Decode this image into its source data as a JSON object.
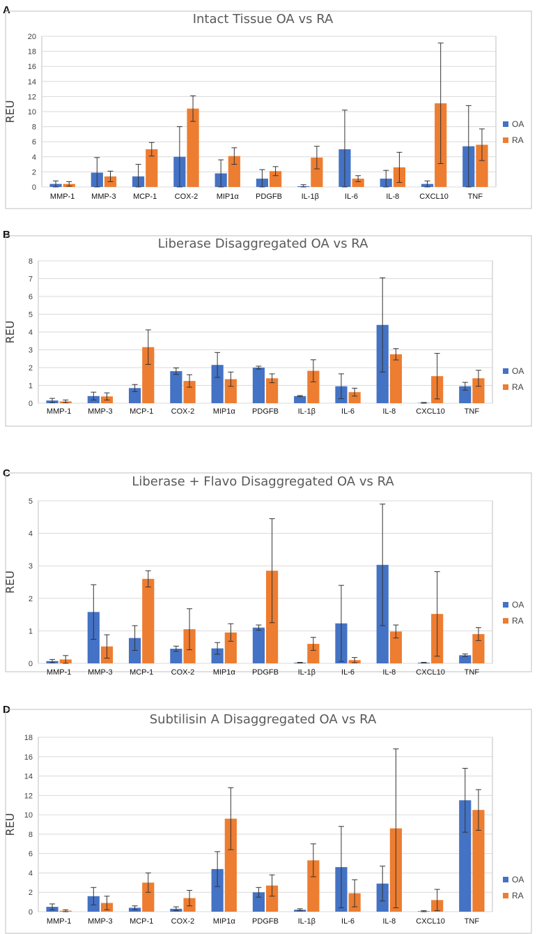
{
  "colors": {
    "OA": "#4472C4",
    "RA": "#ED7D31",
    "grid": "#D9D9D9",
    "errorbar": "#333333"
  },
  "chart_data": [
    {
      "panel": "A",
      "type": "bar",
      "title": "Intact Tissue OA vs RA",
      "xlabel": "",
      "ylabel": "REU",
      "ylim": [
        0,
        20
      ],
      "yticks": [
        0,
        2,
        4,
        6,
        8,
        10,
        12,
        14,
        16,
        18,
        20
      ],
      "legend_position": "right",
      "categories": [
        "MMP-1",
        "MMP-3",
        "MCP-1",
        "COX-2",
        "MIP1α",
        "PDGFB",
        "IL-1β",
        "IL-6",
        "IL-8",
        "CXCL10",
        "TNF"
      ],
      "series": [
        {
          "name": "OA",
          "values": [
            0.4,
            1.9,
            1.4,
            4.0,
            1.8,
            1.1,
            0.1,
            5.0,
            1.1,
            0.4,
            5.4
          ],
          "errors": [
            0.4,
            2.0,
            1.6,
            4.0,
            1.8,
            1.2,
            0.2,
            5.2,
            1.1,
            0.4,
            5.4
          ]
        },
        {
          "name": "RA",
          "values": [
            0.4,
            1.4,
            5.0,
            10.4,
            4.1,
            2.1,
            3.9,
            1.1,
            2.6,
            11.1,
            5.6
          ],
          "errors": [
            0.3,
            0.7,
            0.9,
            1.7,
            1.1,
            0.6,
            1.5,
            0.4,
            2.0,
            8.0,
            2.1
          ]
        }
      ]
    },
    {
      "panel": "B",
      "type": "bar",
      "title": "Liberase Disaggregated OA vs RA",
      "xlabel": "",
      "ylabel": "REU",
      "ylim": [
        0,
        8
      ],
      "yticks": [
        0,
        1,
        2,
        3,
        4,
        5,
        6,
        7,
        8
      ],
      "legend_position": "right",
      "categories": [
        "MMP-1",
        "MMP-3",
        "MCP-1",
        "COX-2",
        "MIP1α",
        "PDGFB",
        "IL-1β",
        "IL-6",
        "IL-8",
        "CXCL10",
        "TNF"
      ],
      "series": [
        {
          "name": "OA",
          "values": [
            0.15,
            0.4,
            0.85,
            1.8,
            2.15,
            2.0,
            0.4,
            0.95,
            4.4,
            0.02,
            0.95
          ],
          "errors": [
            0.12,
            0.22,
            0.2,
            0.18,
            0.7,
            0.08,
            0.03,
            0.7,
            2.65,
            0.02,
            0.22
          ]
        },
        {
          "name": "RA",
          "values": [
            0.1,
            0.38,
            3.15,
            1.25,
            1.35,
            1.4,
            1.82,
            0.62,
            2.75,
            1.52,
            1.4
          ],
          "errors": [
            0.08,
            0.2,
            0.97,
            0.35,
            0.4,
            0.25,
            0.62,
            0.22,
            0.32,
            1.28,
            0.45
          ]
        }
      ]
    },
    {
      "panel": "C",
      "type": "bar",
      "title": "Liberase + Flavo Disaggregated OA vs RA",
      "xlabel": "",
      "ylabel": "REU",
      "ylim": [
        0,
        5
      ],
      "yticks": [
        0,
        1,
        2,
        3,
        4,
        5
      ],
      "legend_position": "right",
      "categories": [
        "MMP-1",
        "MMP-3",
        "MCP-1",
        "COX-2",
        "MIP1α",
        "PDGFB",
        "IL-1β",
        "IL-6",
        "IL-8",
        "CXCL10",
        "TNF"
      ],
      "series": [
        {
          "name": "OA",
          "values": [
            0.07,
            1.58,
            0.78,
            0.45,
            0.46,
            1.1,
            0.02,
            1.23,
            3.03,
            0.02,
            0.25
          ],
          "errors": [
            0.05,
            0.84,
            0.38,
            0.08,
            0.18,
            0.08,
            0.01,
            1.17,
            1.87,
            0.01,
            0.04
          ]
        },
        {
          "name": "RA",
          "values": [
            0.12,
            0.52,
            2.6,
            1.05,
            0.95,
            2.85,
            0.6,
            0.1,
            0.98,
            1.52,
            0.9
          ],
          "errors": [
            0.12,
            0.36,
            0.25,
            0.63,
            0.27,
            1.6,
            0.2,
            0.08,
            0.2,
            1.3,
            0.2
          ]
        }
      ]
    },
    {
      "panel": "D",
      "type": "bar",
      "title": "Subtilisin A Disaggregated OA vs RA",
      "xlabel": "",
      "ylabel": "REU",
      "ylim": [
        0,
        18
      ],
      "yticks": [
        0,
        2,
        4,
        6,
        8,
        10,
        12,
        14,
        16,
        18
      ],
      "legend_position": "right",
      "categories": [
        "MMP-1",
        "MMP-3",
        "MCP-1",
        "COX-2",
        "MIP1α",
        "PDGFB",
        "IL-1β",
        "IL-6",
        "IL-8",
        "CXCL10",
        "TNF"
      ],
      "series": [
        {
          "name": "OA",
          "values": [
            0.5,
            1.6,
            0.4,
            0.3,
            4.4,
            2.0,
            0.2,
            4.6,
            2.9,
            0.05,
            11.5
          ],
          "errors": [
            0.3,
            0.9,
            0.2,
            0.2,
            1.8,
            0.5,
            0.1,
            4.2,
            1.8,
            0.05,
            3.3
          ]
        },
        {
          "name": "RA",
          "values": [
            0.1,
            0.9,
            3.0,
            1.4,
            9.6,
            2.7,
            5.3,
            1.9,
            8.6,
            1.2,
            10.5
          ],
          "errors": [
            0.1,
            0.7,
            1.0,
            0.8,
            3.2,
            1.1,
            1.7,
            1.4,
            8.2,
            1.1,
            2.1
          ]
        }
      ]
    }
  ]
}
